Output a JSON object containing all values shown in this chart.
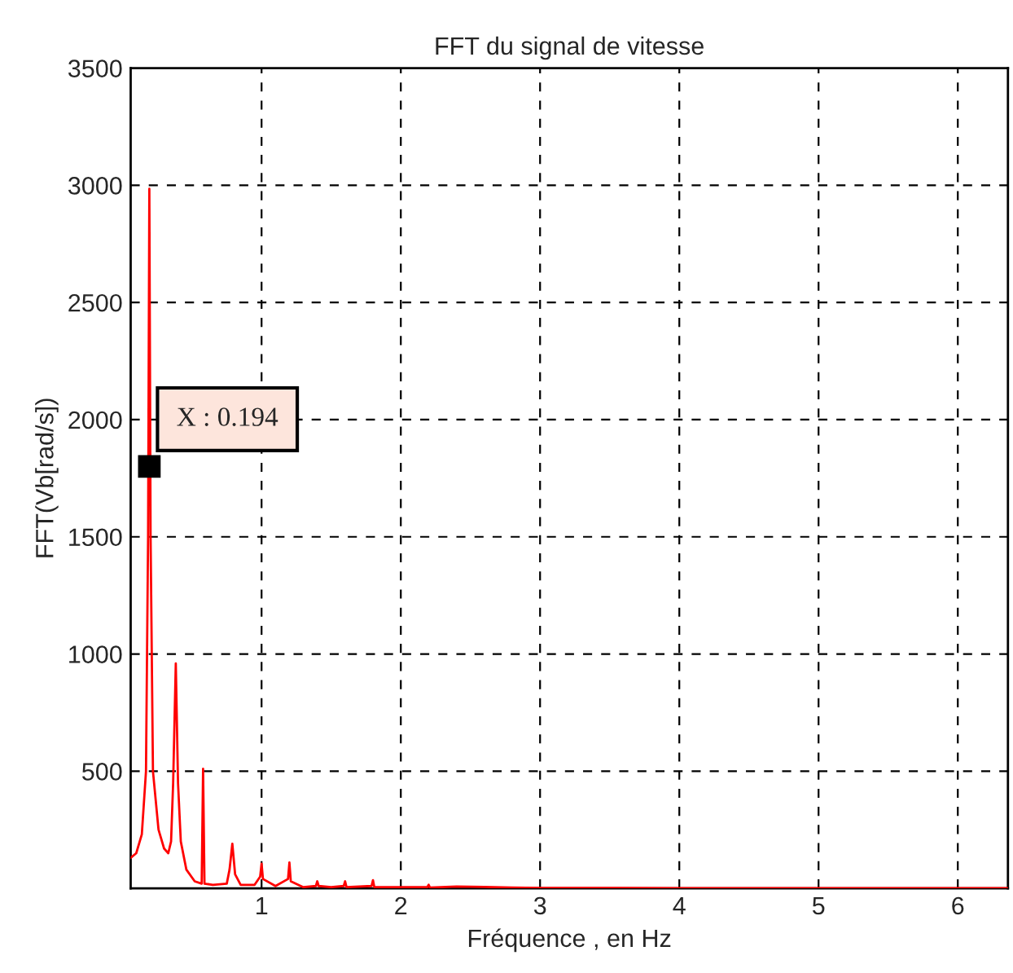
{
  "chart_data": {
    "type": "line",
    "title": "FFT du signal de vitesse",
    "xlabel": "Fréquence , en Hz",
    "ylabel": "FFT(Vb[rad/s])",
    "x": [
      0.06,
      0.1,
      0.14,
      0.17,
      0.185,
      0.194,
      0.203,
      0.22,
      0.26,
      0.3,
      0.33,
      0.35,
      0.365,
      0.384,
      0.4,
      0.42,
      0.46,
      0.52,
      0.57,
      0.58,
      0.59,
      0.65,
      0.75,
      0.77,
      0.79,
      0.81,
      0.85,
      0.95,
      0.99,
      1.0,
      1.01,
      1.1,
      1.19,
      1.2,
      1.21,
      1.3,
      1.39,
      1.4,
      1.41,
      1.5,
      1.59,
      1.6,
      1.61,
      1.79,
      1.8,
      1.81,
      2.19,
      2.2,
      2.21,
      2.4,
      2.6,
      2.8,
      3,
      4,
      5,
      6,
      6.36
    ],
    "series": [
      {
        "color": "#ff0000",
        "values": [
          130,
          150,
          230,
          500,
          1500,
          2985,
          1500,
          500,
          250,
          170,
          150,
          200,
          450,
          960,
          450,
          200,
          80,
          30,
          20,
          510,
          20,
          15,
          20,
          80,
          190,
          60,
          15,
          15,
          50,
          105,
          40,
          10,
          40,
          110,
          30,
          5,
          10,
          30,
          10,
          5,
          10,
          30,
          5,
          10,
          35,
          5,
          5,
          15,
          3,
          8,
          6,
          3,
          2,
          1,
          1,
          1,
          1
        ]
      }
    ],
    "xlim": [
      0.06,
      6.36
    ],
    "ylim": [
      0,
      3500
    ],
    "xticks": [
      1,
      2,
      3,
      4,
      5,
      6
    ],
    "yticks": [
      500,
      1000,
      1500,
      2000,
      2500,
      3000,
      3500
    ],
    "grid": true,
    "line_style": "solid",
    "marker": "none",
    "annotations": [
      {
        "text": "X : 0.194",
        "x": 0.194,
        "y": 1800
      }
    ]
  }
}
